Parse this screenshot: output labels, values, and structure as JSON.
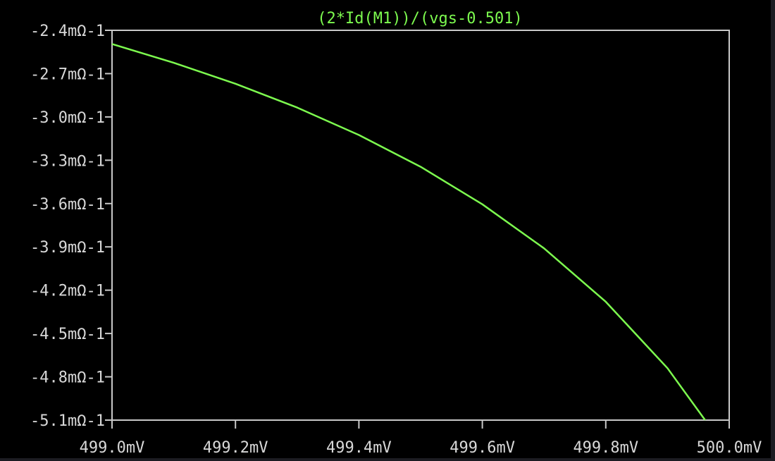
{
  "colors": {
    "background": "#000000",
    "axis": "#c8c8c8",
    "text": "#d8d8d8",
    "trace": "#7dfb4f"
  },
  "chart_data": {
    "type": "line",
    "title": "(2*Id(M1))/(vgs-0.501)",
    "xlabel": "",
    "ylabel": "",
    "grid": false,
    "xlim": [
      499.0,
      500.0
    ],
    "ylim": [
      -5.1,
      -2.4
    ],
    "x_ticks": [
      499.0,
      499.2,
      499.4,
      499.6,
      499.8,
      500.0
    ],
    "x_tick_labels": [
      "499.0mV",
      "499.2mV",
      "499.4mV",
      "499.6mV",
      "499.8mV",
      "500.0mV"
    ],
    "y_ticks": [
      -2.4,
      -2.7,
      -3.0,
      -3.3,
      -3.6,
      -3.9,
      -4.2,
      -4.5,
      -4.8,
      -5.1
    ],
    "y_tick_labels": [
      "-2.4mΩ-1",
      "-2.7mΩ-1",
      "-3.0mΩ-1",
      "-3.3mΩ-1",
      "-3.6mΩ-1",
      "-3.9mΩ-1",
      "-4.2mΩ-1",
      "-4.5mΩ-1",
      "-4.8mΩ-1",
      "-5.1mΩ-1"
    ],
    "series": [
      {
        "color": "#7dfb4f",
        "x": [
          499.0,
          499.1,
          499.2,
          499.3,
          499.4,
          499.5,
          499.6,
          499.7,
          499.8,
          499.9,
          500.0
        ],
        "y": [
          -2.495,
          -2.625,
          -2.77,
          -2.935,
          -3.125,
          -3.345,
          -3.605,
          -3.91,
          -4.28,
          -4.74,
          -5.33
        ]
      }
    ]
  }
}
